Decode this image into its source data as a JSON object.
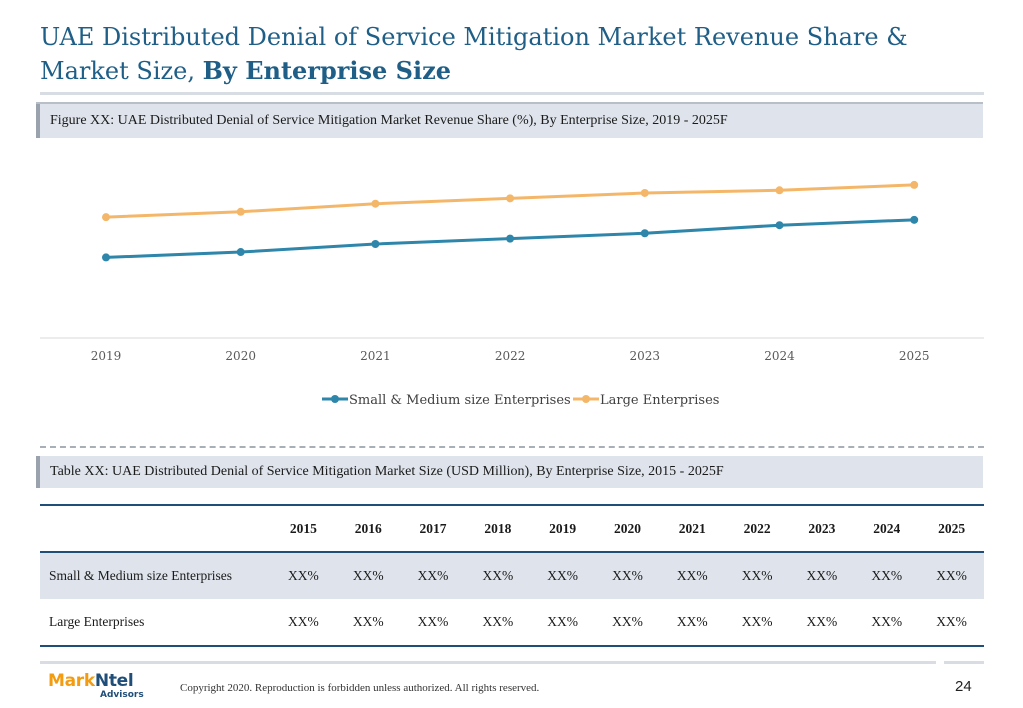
{
  "page": {
    "title_regular": "UAE Distributed Denial of Service Mitigation Market Revenue Share & Market Size, ",
    "title_bold": "By Enterprise Size",
    "figure_caption": "Figure XX: UAE Distributed Denial of Service Mitigation Market Revenue Share (%), By Enterprise Size, 2019 - 2025F",
    "table_caption": "Table XX: UAE Distributed Denial of Service Mitigation Market Size (USD Million), By Enterprise Size, 2015 - 2025F",
    "copyright": "Copyright 2020. Reproduction is forbidden unless authorized. All rights reserved.",
    "page_number": "24",
    "logo": {
      "part1": "Mark",
      "part2": "Ntel",
      "sub": "Advisors"
    }
  },
  "chart_data": {
    "type": "line",
    "categories": [
      "2019",
      "2020",
      "2021",
      "2022",
      "2023",
      "2024",
      "2025"
    ],
    "series": [
      {
        "name": "Small & Medium size Enterprises",
        "color": "#2e86ab",
        "values": [
          30,
          32,
          35,
          37,
          39,
          42,
          44
        ]
      },
      {
        "name": "Large Enterprises",
        "color": "#f4b76a",
        "values": [
          45,
          47,
          50,
          52,
          54,
          55,
          57
        ]
      }
    ],
    "ylim": [
      0,
      70
    ],
    "grid": false,
    "legend_position": "bottom"
  },
  "table": {
    "years": [
      "2015",
      "2016",
      "2017",
      "2018",
      "2019",
      "2020",
      "2021",
      "2022",
      "2023",
      "2024",
      "2025"
    ],
    "rows": [
      {
        "label": "Small & Medium size Enterprises",
        "cells": [
          "XX%",
          "XX%",
          "XX%",
          "XX%",
          "XX%",
          "XX%",
          "XX%",
          "XX%",
          "XX%",
          "XX%",
          "XX%"
        ]
      },
      {
        "label": "Large Enterprises",
        "cells": [
          "XX%",
          "XX%",
          "XX%",
          "XX%",
          "XX%",
          "XX%",
          "XX%",
          "XX%",
          "XX%",
          "XX%",
          "XX%"
        ]
      }
    ]
  }
}
